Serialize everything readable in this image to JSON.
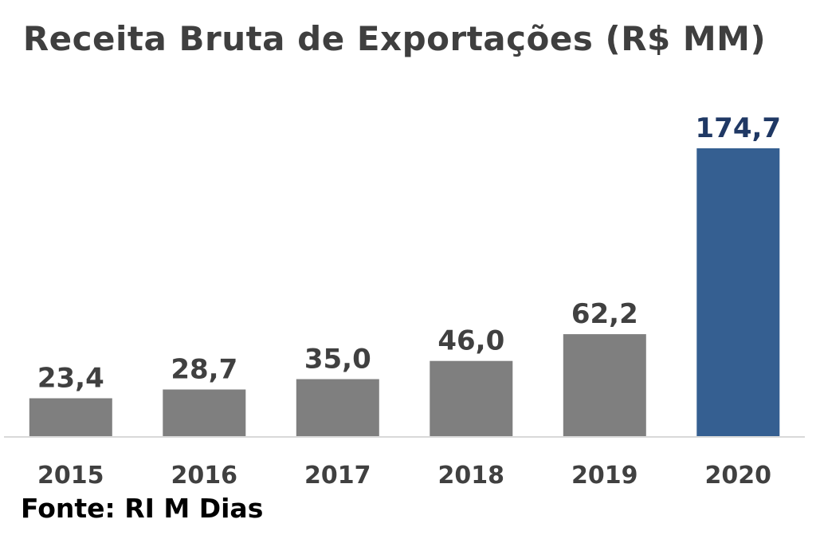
{
  "chart_data": {
    "type": "bar",
    "title": "Receita Bruta de Exportações (R$ MM)",
    "categories": [
      "2015",
      "2016",
      "2017",
      "2018",
      "2019",
      "2020"
    ],
    "values": [
      23.4,
      28.7,
      35.0,
      46.0,
      62.2,
      174.7
    ],
    "value_labels": [
      "23,4",
      "28,7",
      "35,0",
      "46,0",
      "62,2",
      "174,7"
    ],
    "xlabel": "",
    "ylabel": "",
    "ylim": [
      0,
      174.7
    ],
    "grid": false,
    "legend": "none",
    "colors": {
      "default_bar": "#7f7f7f",
      "highlight_bar": "#355f91",
      "highlight_label": "#1f3864",
      "default_label": "#404040",
      "axis": "#d9d9d9",
      "tick_label": "#404040"
    },
    "highlight_index": 5
  },
  "source": "Fonte: RI M Dias"
}
